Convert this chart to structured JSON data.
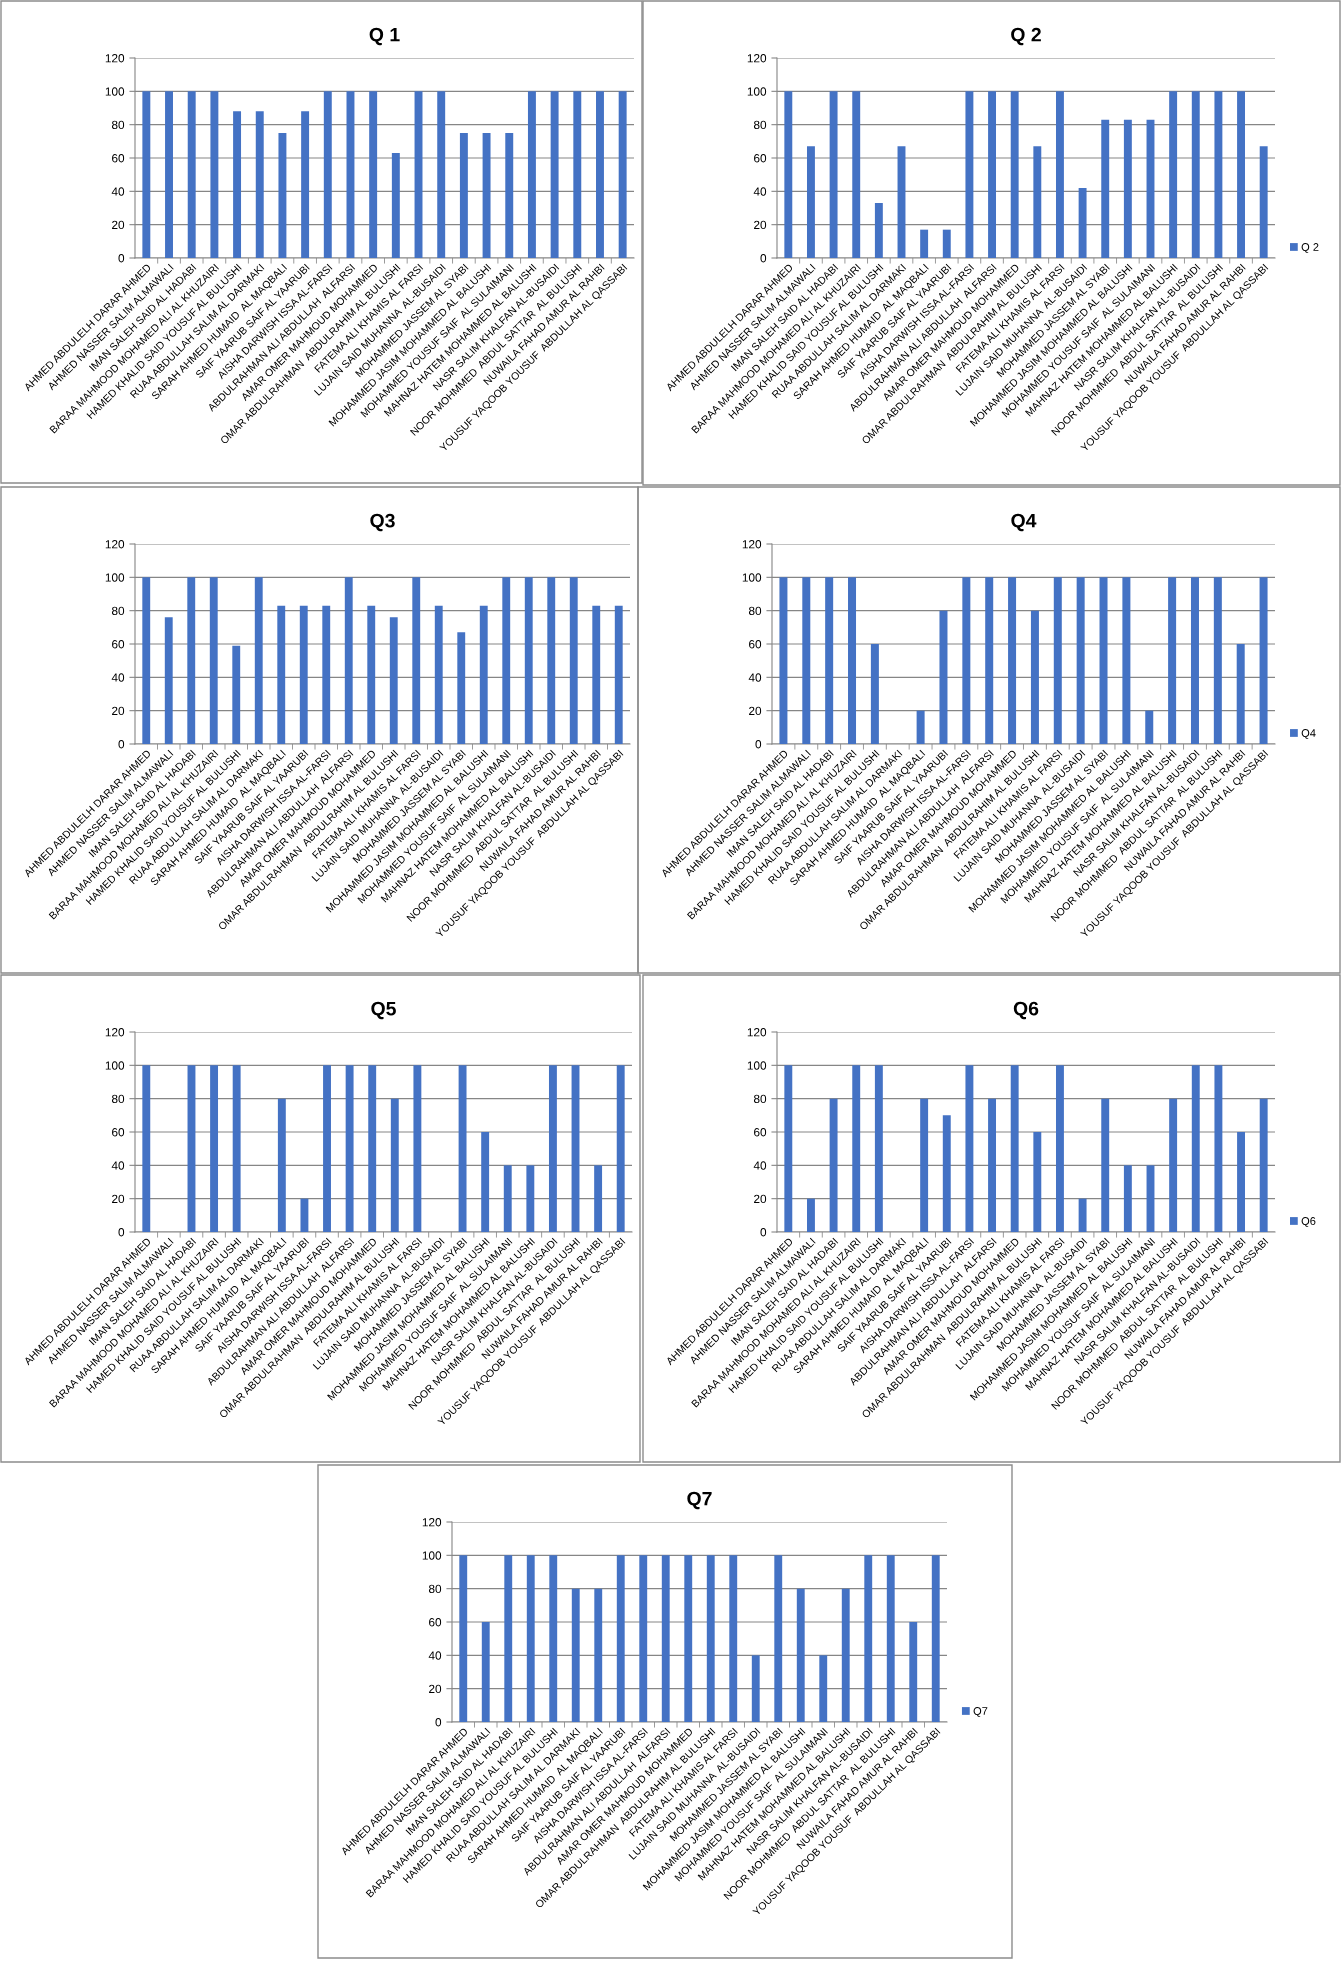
{
  "chart_data": [
    {
      "type": "bar",
      "title": "Q 1",
      "categories": [
        "AHMED ABDULELH DARAR AHMED",
        "AHMED NASSER SALIM ALMAWALI",
        "IMAN SALEH SAID AL HADABI",
        "BARAA MAHMOOD MOHAMED ALI AL KHUZAIRI",
        "HAMED KHALID SAID YOUSUF AL BULUSHI",
        "RUAA ABDULLAH SALIM AL DARMAKI",
        "SARAH AHMED HUMAID  AL MAQBALI",
        "SAIF YAARUB SAIF AL YAARUBI",
        "AISHA DARWISH ISSA AL-FARSI",
        "ABDULRAHMAN ALI ABDULLAH  ALFARSI",
        "AMAR OMER MAHMOUD MOHAMMED",
        "OMAR ABDULRAHMAN  ABDULRAHIM AL BULUSHI",
        "FATEMA ALI KHAMIS AL FARSI",
        "LUJAIN SAID MUHANNA  AL-BUSAIDI",
        "MOHAMMED JASSEM AL SYABI",
        "MOHAMMED JASIM MOHAMMED AL BALUSHI",
        "MOHAMMED YOUSUF SAIF  AL SULAIMANI",
        "MAHNAZ HATEM MOHAMMED AL BALUSHI",
        "NASR SALIM KHALFAN AL-BUSAIDI",
        "NOOR MOHMMED  ABDUL SATTAR  AL BULUSHI",
        "NUWAILA FAHAD AMUR AL RAHBI",
        "YOUSUF YAQOOB YOUSUF  ABDULLAH AL QASSABI"
      ],
      "series": [
        {
          "color": "#4472c4",
          "values": [
            100,
            100,
            100,
            100,
            88,
            88,
            75,
            88,
            100,
            100,
            100,
            63,
            100,
            100,
            75,
            75,
            75,
            100,
            100,
            100,
            100,
            100
          ]
        }
      ],
      "ylim": [
        0,
        120
      ],
      "yticks": [
        0,
        20,
        40,
        60,
        80,
        100,
        120
      ],
      "grid": "y"
    },
    {
      "type": "bar",
      "title": "Q 2",
      "categories": [
        "AHMED ABDULELH DARAR AHMED",
        "AHMED NASSER SALIM ALMAWALI",
        "IMAN SALEH SAID AL HADABI",
        "BARAA MAHMOOD MOHAMED ALI AL KHUZAIRI",
        "HAMED KHALID SAID YOUSUF AL BULUSHI",
        "RUAA ABDULLAH SALIM AL DARMAKI",
        "SARAH AHMED HUMAID  AL MAQBALI",
        "SAIF YAARUB SAIF AL YAARUBI",
        "AISHA DARWISH ISSA AL-FARSI",
        "ABDULRAHMAN ALI ABDULLAH  ALFARSI",
        "AMAR OMER MAHMOUD MOHAMMED",
        "OMAR ABDULRAHMAN  ABDULRAHIM AL BULUSHI",
        "FATEMA ALI KHAMIS AL FARSI",
        "LUJAIN SAID MUHANNA  AL-BUSAIDI",
        "MOHAMMED JASSEM AL SYABI",
        "MOHAMMED JASIM MOHAMMED AL BALUSHI",
        "MOHAMMED YOUSUF SAIF  AL SULAIMANI",
        "MAHNAZ HATEM MOHAMMED AL BALUSHI",
        "NASR SALIM KHALFAN AL-BUSAIDI",
        "NOOR MOHMMED  ABDUL SATTAR  AL BULUSHI",
        "NUWAILA FAHAD AMUR AL RAHBI",
        "YOUSUF YAQOOB YOUSUF  ABDULLAH AL QASSABI"
      ],
      "series": [
        {
          "name": "Q 2",
          "color": "#4472c4",
          "values": [
            100,
            67,
            100,
            100,
            33,
            67,
            17,
            17,
            100,
            100,
            100,
            67,
            100,
            42,
            83,
            83,
            83,
            100,
            100,
            100,
            100,
            67
          ]
        }
      ],
      "ylim": [
        0,
        120
      ],
      "yticks": [
        0,
        20,
        40,
        60,
        80,
        100,
        120
      ],
      "grid": "y",
      "legend": "right"
    },
    {
      "type": "bar",
      "title": "Q3",
      "categories": [
        "AHMED ABDULELH DARAR AHMED",
        "AHMED NASSER SALIM ALMAWALI",
        "IMAN SALEH SAID AL HADABI",
        "BARAA MAHMOOD MOHAMED ALI AL KHUZAIRI",
        "HAMED KHALID SAID YOUSUF AL BULUSHI",
        "RUAA ABDULLAH SALIM AL DARMAKI",
        "SARAH AHMED HUMAID  AL MAQBALI",
        "SAIF YAARUB SAIF AL YAARUBI",
        "AISHA DARWISH ISSA AL-FARSI",
        "ABDULRAHMAN ALI ABDULLAH  ALFARSI",
        "AMAR OMER MAHMOUD MOHAMMED",
        "OMAR ABDULRAHMAN  ABDULRAHIM AL BULUSHI",
        "FATEMA ALI KHAMIS AL FARSI",
        "LUJAIN SAID MUHANNA  AL-BUSAIDI",
        "MOHAMMED JASSEM AL SYABI",
        "MOHAMMED JASIM MOHAMMED AL BALUSHI",
        "MOHAMMED YOUSUF SAIF  AL SULAIMANI",
        "MAHNAZ HATEM MOHAMMED AL BALUSHI",
        "NASR SALIM KHALFAN AL-BUSAIDI",
        "NOOR MOHMMED  ABDUL SATTAR  AL BULUSHI",
        "NUWAILA FAHAD AMUR AL RAHBI",
        "YOUSUF YAQOOB YOUSUF  ABDULLAH AL QASSABI"
      ],
      "series": [
        {
          "color": "#4472c4",
          "values": [
            100,
            76,
            100,
            100,
            59,
            100,
            83,
            83,
            83,
            100,
            83,
            76,
            100,
            83,
            67,
            83,
            100,
            100,
            100,
            100,
            83,
            83
          ]
        }
      ],
      "ylim": [
        0,
        120
      ],
      "yticks": [
        0,
        20,
        40,
        60,
        80,
        100,
        120
      ],
      "grid": "y"
    },
    {
      "type": "bar",
      "title": "Q4",
      "categories": [
        "AHMED ABDULELH DARAR AHMED",
        "AHMED NASSER SALIM ALMAWALI",
        "IMAN SALEH SAID AL HADABI",
        "BARAA MAHMOOD MOHAMED ALI AL KHUZAIRI",
        "HAMED KHALID SAID YOUSUF AL BULUSHI",
        "RUAA ABDULLAH SALIM AL DARMAKI",
        "SARAH AHMED HUMAID  AL MAQBALI",
        "SAIF YAARUB SAIF AL YAARUBI",
        "AISHA DARWISH ISSA AL-FARSI",
        "ABDULRAHMAN ALI ABDULLAH  ALFARSI",
        "AMAR OMER MAHMOUD MOHAMMED",
        "OMAR ABDULRAHMAN  ABDULRAHIM AL BULUSHI",
        "FATEMA ALI KHAMIS AL FARSI",
        "LUJAIN SAID MUHANNA  AL-BUSAIDI",
        "MOHAMMED JASSEM AL SYABI",
        "MOHAMMED JASIM MOHAMMED AL BALUSHI",
        "MOHAMMED YOUSUF SAIF  AL SULAIMANI",
        "MAHNAZ HATEM MOHAMMED AL BALUSHI",
        "NASR SALIM KHALFAN AL-BUSAIDI",
        "NOOR MOHMMED  ABDUL SATTAR  AL BULUSHI",
        "NUWAILA FAHAD AMUR AL RAHBI",
        "YOUSUF YAQOOB YOUSUF  ABDULLAH AL QASSABI"
      ],
      "series": [
        {
          "name": "Q4",
          "color": "#4472c4",
          "values": [
            100,
            100,
            100,
            100,
            60,
            0,
            20,
            80,
            100,
            100,
            100,
            80,
            100,
            100,
            100,
            100,
            20,
            100,
            100,
            100,
            60,
            100
          ]
        }
      ],
      "ylim": [
        0,
        120
      ],
      "yticks": [
        0,
        20,
        40,
        60,
        80,
        100,
        120
      ],
      "grid": "y",
      "legend": "right"
    },
    {
      "type": "bar",
      "title": "Q5",
      "categories": [
        "AHMED ABDULELH DARAR AHMED",
        "AHMED NASSER SALIM ALMAWALI",
        "IMAN SALEH SAID AL HADABI",
        "BARAA MAHMOOD MOHAMED ALI AL KHUZAIRI",
        "HAMED KHALID SAID YOUSUF AL BULUSHI",
        "RUAA ABDULLAH SALIM AL DARMAKI",
        "SARAH AHMED HUMAID  AL MAQBALI",
        "SAIF YAARUB SAIF AL YAARUBI",
        "AISHA DARWISH ISSA AL-FARSI",
        "ABDULRAHMAN ALI ABDULLAH  ALFARSI",
        "AMAR OMER MAHMOUD MOHAMMED",
        "OMAR ABDULRAHMAN  ABDULRAHIM AL BULUSHI",
        "FATEMA ALI KHAMIS AL FARSI",
        "LUJAIN SAID MUHANNA  AL-BUSAIDI",
        "MOHAMMED JASSEM AL SYABI",
        "MOHAMMED JASIM MOHAMMED AL BALUSHI",
        "MOHAMMED YOUSUF SAIF  AL SULAIMANI",
        "MAHNAZ HATEM MOHAMMED AL BALUSHI",
        "NASR SALIM KHALFAN AL-BUSAIDI",
        "NOOR MOHMMED  ABDUL SATTAR  AL BULUSHI",
        "NUWAILA FAHAD AMUR AL RAHBI",
        "YOUSUF YAQOOB YOUSUF  ABDULLAH AL QASSABI"
      ],
      "series": [
        {
          "color": "#4472c4",
          "values": [
            100,
            0,
            100,
            100,
            100,
            0,
            80,
            20,
            100,
            100,
            100,
            80,
            100,
            0,
            100,
            60,
            40,
            40,
            100,
            100,
            40,
            100
          ]
        }
      ],
      "ylim": [
        0,
        120
      ],
      "yticks": [
        0,
        20,
        40,
        60,
        80,
        100,
        120
      ],
      "grid": "y"
    },
    {
      "type": "bar",
      "title": "Q6",
      "categories": [
        "AHMED ABDULELH DARAR AHMED",
        "AHMED NASSER SALIM ALMAWALI",
        "IMAN SALEH SAID AL HADABI",
        "BARAA MAHMOOD MOHAMED ALI AL KHUZAIRI",
        "HAMED KHALID SAID YOUSUF AL BULUSHI",
        "RUAA ABDULLAH SALIM AL DARMAKI",
        "SARAH AHMED HUMAID  AL MAQBALI",
        "SAIF YAARUB SAIF AL YAARUBI",
        "AISHA DARWISH ISSA AL-FARSI",
        "ABDULRAHMAN ALI ABDULLAH  ALFARSI",
        "AMAR OMER MAHMOUD MOHAMMED",
        "OMAR ABDULRAHMAN  ABDULRAHIM AL BULUSHI",
        "FATEMA ALI KHAMIS AL FARSI",
        "LUJAIN SAID MUHANNA  AL-BUSAIDI",
        "MOHAMMED JASSEM AL SYABI",
        "MOHAMMED JASIM MOHAMMED AL BALUSHI",
        "MOHAMMED YOUSUF SAIF  AL SULAIMANI",
        "MAHNAZ HATEM MOHAMMED AL BALUSHI",
        "NASR SALIM KHALFAN AL-BUSAIDI",
        "NOOR MOHMMED  ABDUL SATTAR  AL BULUSHI",
        "NUWAILA FAHAD AMUR AL RAHBI",
        "YOUSUF YAQOOB YOUSUF  ABDULLAH AL QASSABI"
      ],
      "series": [
        {
          "name": "Q6",
          "color": "#4472c4",
          "values": [
            100,
            20,
            80,
            100,
            100,
            0,
            80,
            70,
            100,
            80,
            100,
            60,
            100,
            20,
            80,
            40,
            40,
            80,
            100,
            100,
            60,
            80
          ]
        }
      ],
      "ylim": [
        0,
        120
      ],
      "yticks": [
        0,
        20,
        40,
        60,
        80,
        100,
        120
      ],
      "grid": "y",
      "legend": "right"
    },
    {
      "type": "bar",
      "title": "Q7",
      "categories": [
        "AHMED ABDULELH DARAR AHMED",
        "AHMED NASSER SALIM ALMAWALI",
        "IMAN SALEH SAID AL HADABI",
        "BARAA MAHMOOD MOHAMED ALI AL KHUZAIRI",
        "HAMED KHALID SAID YOUSUF AL BULUSHI",
        "RUAA ABDULLAH SALIM AL DARMAKI",
        "SARAH AHMED HUMAID  AL MAQBALI",
        "SAIF YAARUB SAIF AL YAARUBI",
        "AISHA DARWISH ISSA AL-FARSI",
        "ABDULRAHMAN ALI ABDULLAH  ALFARSI",
        "AMAR OMER MAHMOUD MOHAMMED",
        "OMAR ABDULRAHMAN  ABDULRAHIM AL BULUSHI",
        "FATEMA ALI KHAMIS AL FARSI",
        "LUJAIN SAID MUHANNA  AL-BUSAIDI",
        "MOHAMMED JASSEM AL SYABI",
        "MOHAMMED JASIM MOHAMMED AL BALUSHI",
        "MOHAMMED YOUSUF SAIF  AL SULAIMANI",
        "MAHNAZ HATEM MOHAMMED AL BALUSHI",
        "NASR SALIM KHALFAN AL-BUSAIDI",
        "NOOR MOHMMED  ABDUL SATTAR  AL BULUSHI",
        "NUWAILA FAHAD AMUR AL RAHBI",
        "YOUSUF YAQOOB YOUSUF  ABDULLAH AL QASSABI"
      ],
      "series": [
        {
          "name": "Q7",
          "color": "#4472c4",
          "values": [
            100,
            60,
            100,
            100,
            100,
            80,
            80,
            100,
            100,
            100,
            100,
            100,
            100,
            40,
            100,
            80,
            40,
            80,
            100,
            100,
            60,
            100
          ]
        }
      ],
      "ylim": [
        0,
        120
      ],
      "yticks": [
        0,
        20,
        40,
        60,
        80,
        100,
        120
      ],
      "grid": "y",
      "legend": "right"
    }
  ]
}
